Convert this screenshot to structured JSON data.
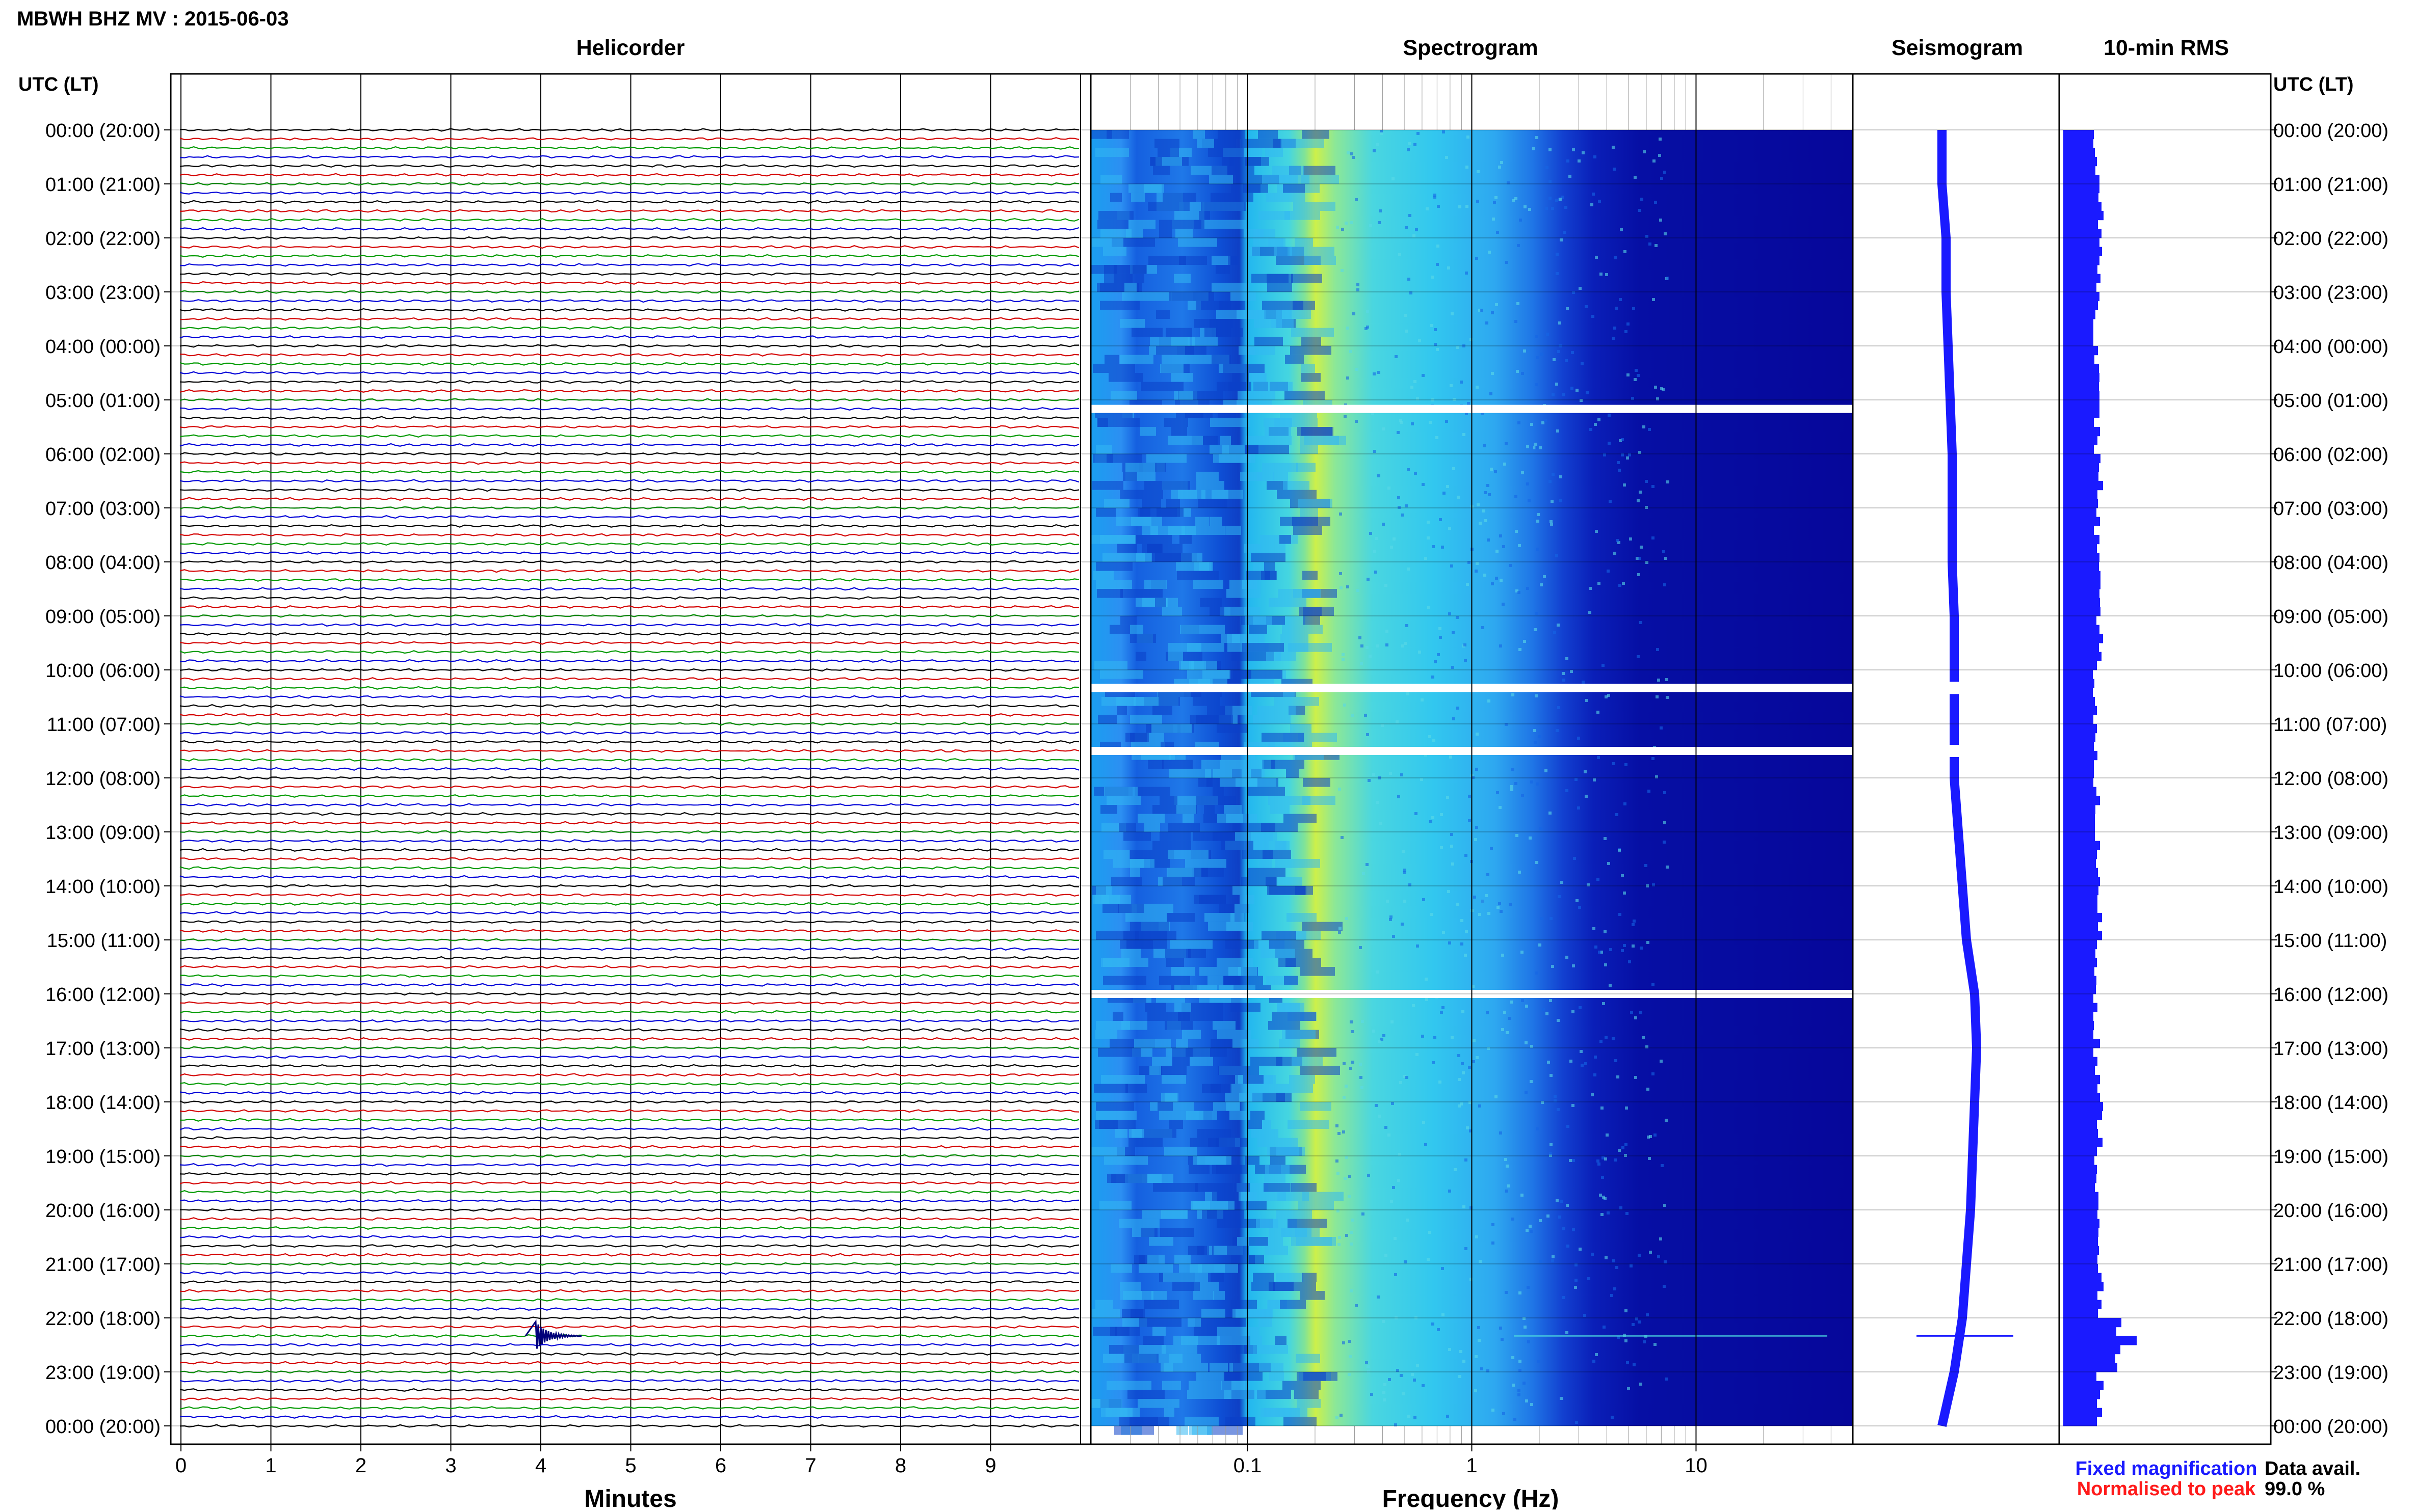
{
  "title": "MBWH BHZ MV : 2015-06-03",
  "panels": {
    "helicorder": "Helicorder",
    "spectrogram": "Spectrogram",
    "seismogram": "Seismogram",
    "rms": "10-min RMS"
  },
  "time_axis": {
    "header": "UTC (LT)",
    "labels": [
      "00:00 (20:00)",
      "01:00 (21:00)",
      "02:00 (22:00)",
      "03:00 (23:00)",
      "04:00 (00:00)",
      "05:00 (01:00)",
      "06:00 (02:00)",
      "07:00 (03:00)",
      "08:00 (04:00)",
      "09:00 (05:00)",
      "10:00 (06:00)",
      "11:00 (07:00)",
      "12:00 (08:00)",
      "13:00 (09:00)",
      "14:00 (10:00)",
      "15:00 (11:00)",
      "16:00 (12:00)",
      "17:00 (13:00)",
      "18:00 (14:00)",
      "19:00 (15:00)",
      "20:00 (16:00)",
      "21:00 (17:00)",
      "22:00 (18:00)",
      "23:00 (19:00)",
      "00:00 (20:00)"
    ]
  },
  "helicorder_axis": {
    "xlabel": "Minutes",
    "ticks": [
      "0",
      "1",
      "2",
      "3",
      "4",
      "5",
      "6",
      "7",
      "8",
      "9"
    ]
  },
  "spectrogram_axis": {
    "xlabel": "Frequency (Hz)",
    "ticks": [
      "0.1",
      "1",
      "10"
    ],
    "scale": "log"
  },
  "legend": {
    "fixed": "Fixed magnification",
    "normalised": "Normalised to peak",
    "fixed_color": "#1a1aff",
    "normalised_color": "#ff1a1a"
  },
  "data_avail": {
    "label": "Data avail.",
    "value": "99.0 %"
  },
  "colors": {
    "trace_cycle": [
      "#000000",
      "#d40000",
      "#009a00",
      "#0000d8"
    ],
    "seismogram": "#1a1aff",
    "rms": "#1a1aff"
  },
  "chart_data": [
    {
      "type": "line",
      "title": "Helicorder",
      "xlabel": "Minutes",
      "xlim": [
        0,
        10
      ],
      "rows_per_hour": 6,
      "rows": 145,
      "events": [
        {
          "time_utc": "22:20",
          "minute": 4.0
        }
      ]
    },
    {
      "type": "heatmap",
      "title": "Spectrogram",
      "xlabel": "Frequency (Hz)",
      "xscale": "log",
      "xlim": [
        0.02,
        50
      ],
      "gaps_utc": [
        "05:10",
        "10:20",
        "11:30",
        "16:00"
      ]
    },
    {
      "type": "line",
      "title": "Seismogram",
      "description_trend": [
        0,
        0,
        0.1,
        0.1,
        0.15,
        0.2,
        0.25,
        0.25,
        0.25,
        0.3,
        0.3,
        0.3,
        0.3,
        0.4,
        0.5,
        0.6,
        0.8,
        0.85,
        0.8,
        0.75,
        0.7,
        0.6,
        0.5,
        0.3,
        0.0
      ]
    },
    {
      "type": "bar",
      "title": "10-min RMS",
      "hourly_level": [
        0.55,
        0.6,
        0.6,
        0.55,
        0.55,
        0.55,
        0.6,
        0.55,
        0.55,
        0.6,
        0.5,
        0.5,
        0.55,
        0.55,
        0.6,
        0.55,
        0.55,
        0.55,
        0.6,
        0.55,
        0.55,
        0.6,
        0.9,
        0.6
      ],
      "peak_time_utc": "22:20"
    }
  ]
}
